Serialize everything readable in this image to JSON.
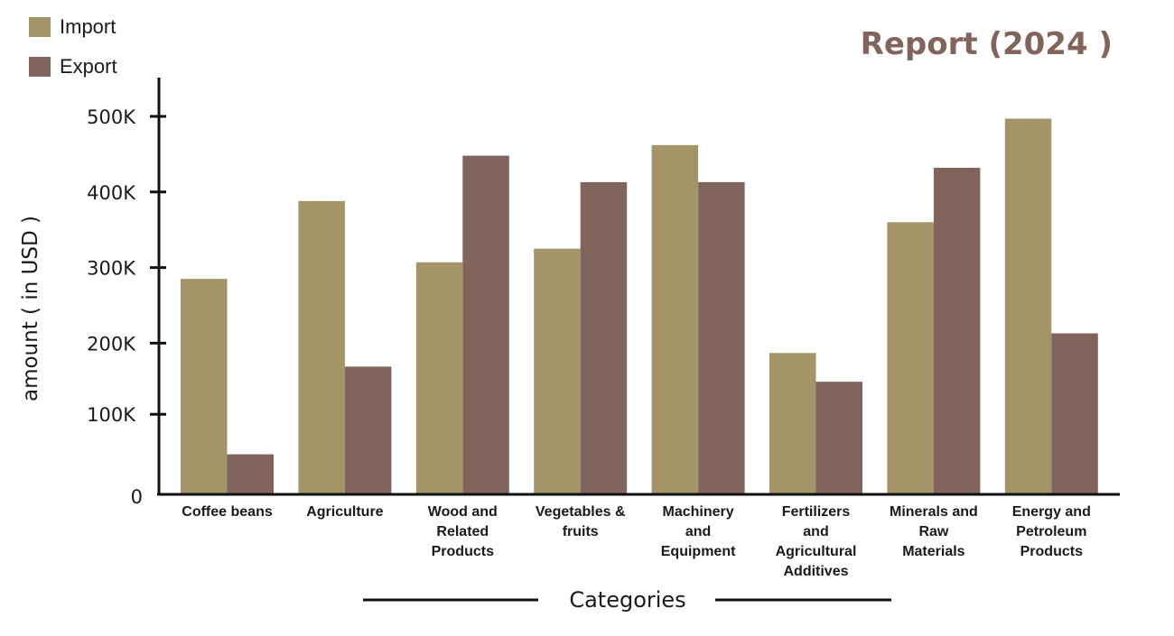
{
  "chart_data": {
    "type": "bar",
    "title": "Report (2024 )",
    "xlabel": "Categories",
    "ylabel": "amount ( in USD )",
    "ylim": [
      0,
      550000
    ],
    "yticks": [
      {
        "value": 0,
        "label": "0"
      },
      {
        "value": 100000,
        "label": "100K"
      },
      {
        "value": 200000,
        "label": "200K"
      },
      {
        "value": 300000,
        "label": "300K"
      },
      {
        "value": 400000,
        "label": "400K"
      },
      {
        "value": 500000,
        "label": "500K"
      }
    ],
    "categories": [
      [
        "Coffee beans"
      ],
      [
        "Agriculture"
      ],
      [
        "Wood and",
        "Related",
        "Products"
      ],
      [
        "Vegetables &",
        "fruits"
      ],
      [
        "Machinery",
        "and",
        "Equipment"
      ],
      [
        "Fertilizers",
        "and",
        "Agricultural",
        "Additives"
      ],
      [
        "Minerals and",
        "Raw",
        "Materials"
      ],
      [
        "Energy and",
        "Petroleum",
        "Products"
      ]
    ],
    "series": [
      {
        "name": "Import",
        "color": "#a39567",
        "values": [
          285000,
          388000,
          307000,
          325000,
          462000,
          187000,
          360000,
          497000
        ]
      },
      {
        "name": "Export",
        "color": "#81655d",
        "values": [
          53000,
          169000,
          448000,
          413000,
          413000,
          149000,
          432000,
          213000
        ]
      }
    ],
    "grid": false,
    "legend": "top-left"
  },
  "colors": {
    "title": "#81655d",
    "axis": "#111111"
  }
}
